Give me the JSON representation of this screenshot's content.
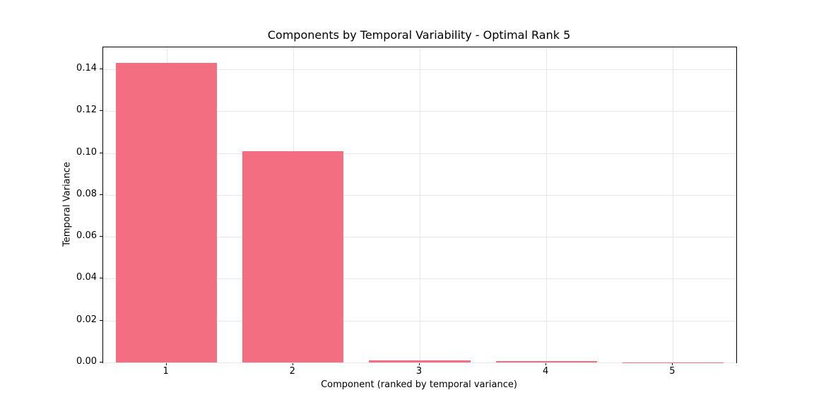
{
  "chart_data": {
    "type": "bar",
    "title": "Components by Temporal Variability - Optimal Rank 5",
    "xlabel": "Component (ranked by temporal variance)",
    "ylabel": "Temporal Variance",
    "categories": [
      "1",
      "2",
      "3",
      "4",
      "5"
    ],
    "values": [
      0.1432,
      0.1008,
      0.001,
      0.0007,
      0.0001
    ],
    "ylim": [
      0,
      0.1505
    ],
    "yticks": [
      0.0,
      0.02,
      0.04,
      0.06,
      0.08,
      0.1,
      0.12,
      0.14
    ],
    "ytick_format_decimals": 2,
    "bar_color": "#f46e82",
    "bar_width_fraction": 0.8,
    "grid": true,
    "grid_color": "#e7e7e7",
    "background": "#ffffff",
    "legend": "none"
  }
}
